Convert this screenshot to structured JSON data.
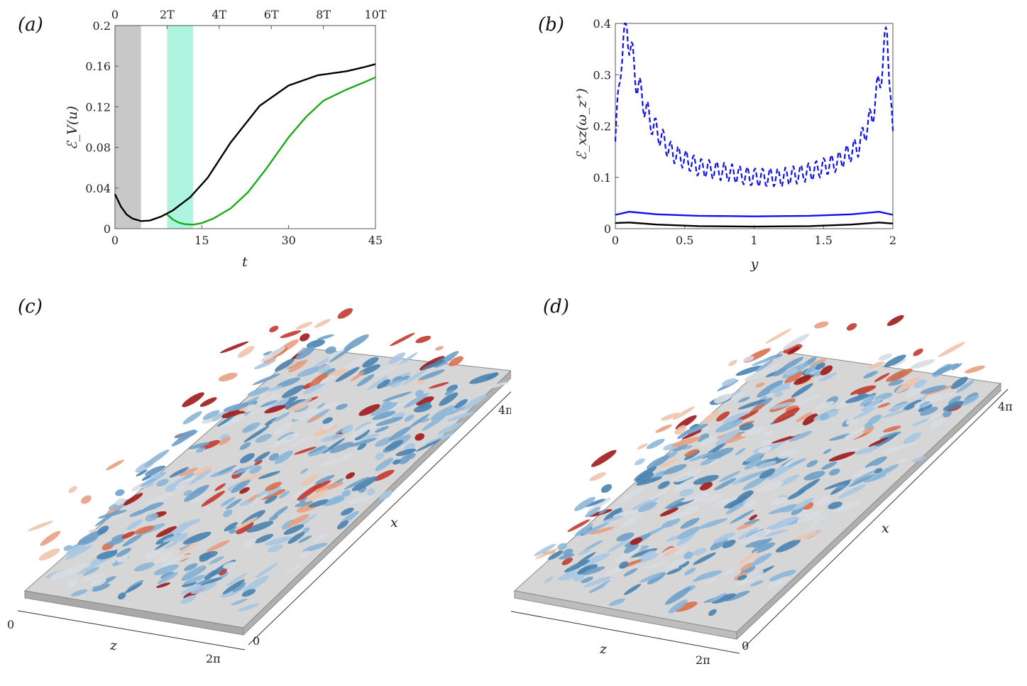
{
  "panels": {
    "a": {
      "label": "(a)"
    },
    "b": {
      "label": "(b)"
    },
    "c": {
      "label": "(c)"
    },
    "d": {
      "label": "(d)"
    }
  },
  "chart_data": [
    {
      "id": "a",
      "type": "line",
      "xlabel": "t",
      "ylabel": "ℰ_V(u)",
      "xlim": [
        0,
        45
      ],
      "ylim": [
        0,
        0.2
      ],
      "xticks": [
        0,
        15,
        30,
        45
      ],
      "xtick_labels": [
        "0",
        "15",
        "30",
        "45"
      ],
      "yticks": [
        0,
        0.04,
        0.08,
        0.12,
        0.16,
        0.2
      ],
      "ytick_labels": [
        "0",
        "0.04",
        "0.08",
        "0.12",
        "0.16",
        "0.2"
      ],
      "top_ticks": [
        0,
        9,
        18,
        27,
        36,
        45
      ],
      "top_tick_labels": [
        "0",
        "2T",
        "4T",
        "6T",
        "8T",
        "10T"
      ],
      "shaded_regions": [
        {
          "x": [
            0,
            4.5
          ],
          "color": "#c8c8c8"
        },
        {
          "x": [
            9,
            13.5
          ],
          "color": "#aef5e0"
        }
      ],
      "series": [
        {
          "name": "black",
          "color": "#000000",
          "x": [
            0,
            1,
            2,
            3,
            4.5,
            6,
            8,
            10,
            13,
            16,
            20,
            25,
            30,
            35,
            40,
            43,
            45
          ],
          "y": [
            0.034,
            0.022,
            0.014,
            0.01,
            0.0075,
            0.008,
            0.012,
            0.018,
            0.031,
            0.05,
            0.085,
            0.121,
            0.141,
            0.151,
            0.155,
            0.159,
            0.162
          ]
        },
        {
          "name": "green",
          "color": "#1aaa1a",
          "x": [
            9,
            10,
            11,
            12,
            13.5,
            15,
            17,
            20,
            23,
            26,
            30,
            33,
            36,
            40,
            43,
            45
          ],
          "y": [
            0.014,
            0.009,
            0.006,
            0.0045,
            0.004,
            0.0055,
            0.01,
            0.02,
            0.036,
            0.058,
            0.09,
            0.11,
            0.126,
            0.137,
            0.144,
            0.149
          ]
        }
      ]
    },
    {
      "id": "b",
      "type": "line",
      "xlabel": "y",
      "ylabel": "ℰ_xz(ω_z⁺)",
      "xlim": [
        0,
        2
      ],
      "ylim": [
        0,
        0.4
      ],
      "xticks": [
        0,
        0.5,
        1,
        1.5,
        2
      ],
      "xtick_labels": [
        "0",
        "0.5",
        "1",
        "1.5",
        "2"
      ],
      "yticks": [
        0,
        0.1,
        0.2,
        0.3,
        0.4
      ],
      "ytick_labels": [
        "0",
        "0.1",
        "0.2",
        "0.3",
        "0.4"
      ],
      "series": [
        {
          "name": "blue dashed",
          "color": "#1010ee",
          "dash": true,
          "x": [
            0,
            0.04,
            0.08,
            0.15,
            0.25,
            0.4,
            0.6,
            0.8,
            1.0,
            1.2,
            1.4,
            1.6,
            1.75,
            1.85,
            1.92,
            1.96,
            2.0
          ],
          "y": [
            0.17,
            0.33,
            0.4,
            0.29,
            0.21,
            0.15,
            0.12,
            0.11,
            0.1,
            0.1,
            0.11,
            0.13,
            0.16,
            0.22,
            0.31,
            0.39,
            0.17
          ]
        },
        {
          "name": "blue solid",
          "color": "#1010ee",
          "x": [
            0,
            0.1,
            0.3,
            0.6,
            1.0,
            1.4,
            1.7,
            1.9,
            2.0
          ],
          "y": [
            0.027,
            0.033,
            0.028,
            0.025,
            0.024,
            0.025,
            0.028,
            0.033,
            0.027
          ]
        },
        {
          "name": "black solid",
          "color": "#000000",
          "x": [
            0,
            0.1,
            0.3,
            0.6,
            1.0,
            1.4,
            1.7,
            1.9,
            2.0
          ],
          "y": [
            0.011,
            0.012,
            0.008,
            0.005,
            0.004,
            0.005,
            0.008,
            0.012,
            0.01
          ]
        }
      ]
    }
  ],
  "scenes": {
    "c": {
      "x_label": "x",
      "z_label": "z",
      "x_tick_end": "4π",
      "z_tick_start": "0",
      "z_tick_end": "2π",
      "x_tick_start": "0"
    },
    "d": {
      "x_label": "x",
      "z_label": "z",
      "x_tick_end": "4π",
      "z_tick_start": "0",
      "z_tick_end": "2π",
      "x_tick_start": "0"
    }
  }
}
